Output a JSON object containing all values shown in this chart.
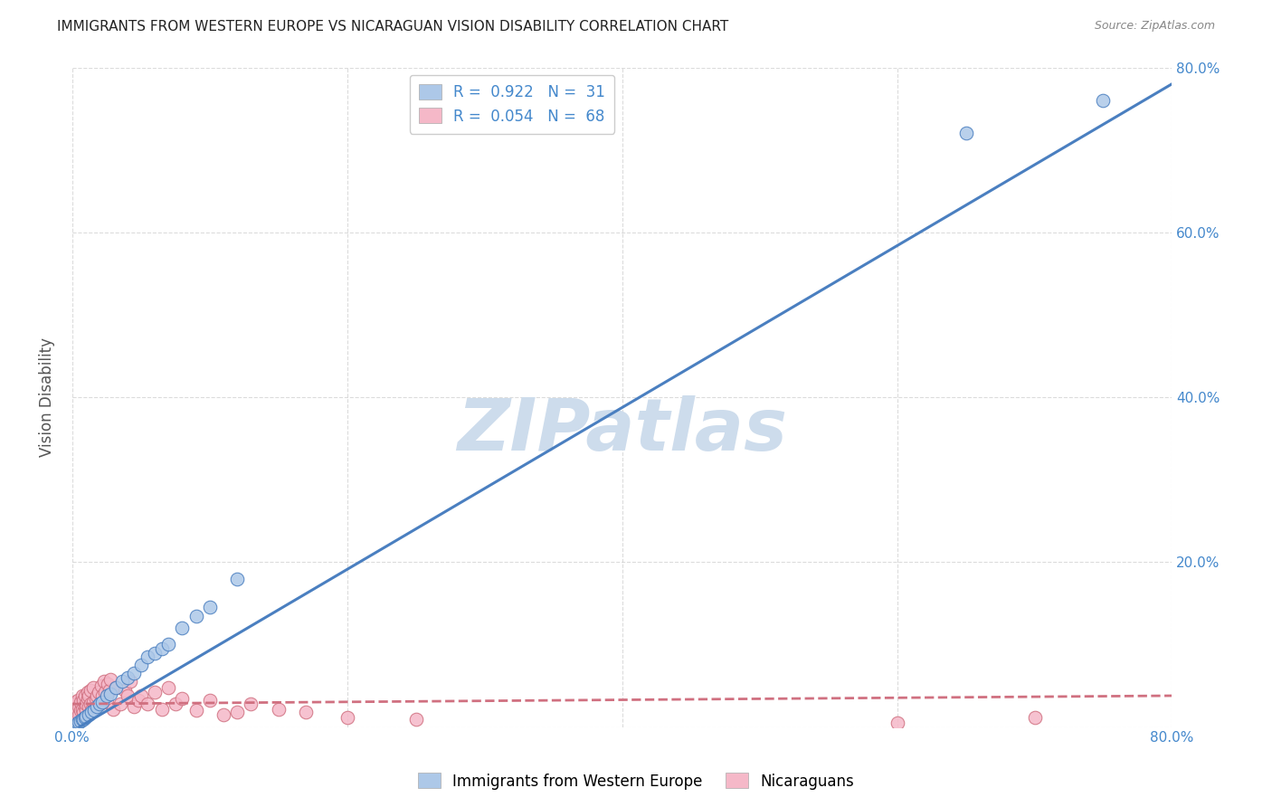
{
  "title": "IMMIGRANTS FROM WESTERN EUROPE VS NICARAGUAN VISION DISABILITY CORRELATION CHART",
  "source": "Source: ZipAtlas.com",
  "ylabel": "Vision Disability",
  "xlim": [
    0,
    0.8
  ],
  "ylim": [
    0,
    0.8
  ],
  "yticks": [
    0.0,
    0.2,
    0.4,
    0.6,
    0.8
  ],
  "ytick_labels": [
    "",
    "20.0%",
    "40.0%",
    "60.0%",
    "80.0%"
  ],
  "blue_R": 0.922,
  "blue_N": 31,
  "pink_R": 0.054,
  "pink_N": 68,
  "blue_color": "#adc8e8",
  "blue_edge_color": "#4a7fc0",
  "blue_line_color": "#4a7fc0",
  "pink_color": "#f5b8c8",
  "pink_edge_color": "#d07080",
  "pink_line_color": "#d07080",
  "watermark_color": "#cddcec",
  "background_color": "#ffffff",
  "grid_color": "#cccccc",
  "title_color": "#222222",
  "axis_label_color": "#4488cc",
  "blue_scatter_x": [
    0.003,
    0.004,
    0.005,
    0.006,
    0.007,
    0.008,
    0.009,
    0.01,
    0.012,
    0.014,
    0.016,
    0.018,
    0.02,
    0.022,
    0.025,
    0.028,
    0.032,
    0.036,
    0.04,
    0.045,
    0.05,
    0.055,
    0.06,
    0.065,
    0.07,
    0.08,
    0.09,
    0.1,
    0.12,
    0.65,
    0.75
  ],
  "blue_scatter_y": [
    0.003,
    0.005,
    0.006,
    0.007,
    0.009,
    0.01,
    0.012,
    0.013,
    0.015,
    0.018,
    0.02,
    0.025,
    0.028,
    0.03,
    0.038,
    0.04,
    0.048,
    0.055,
    0.06,
    0.065,
    0.075,
    0.085,
    0.09,
    0.095,
    0.1,
    0.12,
    0.135,
    0.145,
    0.18,
    0.72,
    0.76
  ],
  "pink_scatter_x": [
    0.001,
    0.001,
    0.002,
    0.002,
    0.003,
    0.003,
    0.004,
    0.004,
    0.005,
    0.005,
    0.006,
    0.006,
    0.007,
    0.007,
    0.008,
    0.008,
    0.009,
    0.009,
    0.01,
    0.01,
    0.011,
    0.011,
    0.012,
    0.012,
    0.013,
    0.013,
    0.014,
    0.015,
    0.015,
    0.016,
    0.017,
    0.018,
    0.019,
    0.02,
    0.021,
    0.022,
    0.023,
    0.024,
    0.025,
    0.026,
    0.027,
    0.028,
    0.03,
    0.032,
    0.035,
    0.038,
    0.04,
    0.042,
    0.045,
    0.048,
    0.05,
    0.055,
    0.06,
    0.065,
    0.07,
    0.075,
    0.08,
    0.09,
    0.1,
    0.11,
    0.12,
    0.13,
    0.15,
    0.17,
    0.2,
    0.25,
    0.6,
    0.7
  ],
  "pink_scatter_y": [
    0.018,
    0.025,
    0.015,
    0.03,
    0.01,
    0.028,
    0.02,
    0.032,
    0.015,
    0.025,
    0.02,
    0.03,
    0.022,
    0.038,
    0.018,
    0.032,
    0.025,
    0.038,
    0.02,
    0.028,
    0.035,
    0.042,
    0.025,
    0.038,
    0.028,
    0.045,
    0.02,
    0.03,
    0.048,
    0.022,
    0.035,
    0.038,
    0.042,
    0.028,
    0.05,
    0.038,
    0.055,
    0.042,
    0.03,
    0.052,
    0.045,
    0.058,
    0.022,
    0.048,
    0.028,
    0.045,
    0.038,
    0.055,
    0.025,
    0.032,
    0.038,
    0.028,
    0.042,
    0.022,
    0.048,
    0.028,
    0.035,
    0.02,
    0.032,
    0.015,
    0.018,
    0.028,
    0.022,
    0.018,
    0.012,
    0.01,
    0.005,
    0.012
  ],
  "blue_line_x0": 0.0,
  "blue_line_y0": -0.005,
  "blue_line_x1": 0.8,
  "blue_line_y1": 0.78,
  "pink_line_x0": 0.0,
  "pink_line_y0": 0.028,
  "pink_line_x1": 0.8,
  "pink_line_y1": 0.038
}
